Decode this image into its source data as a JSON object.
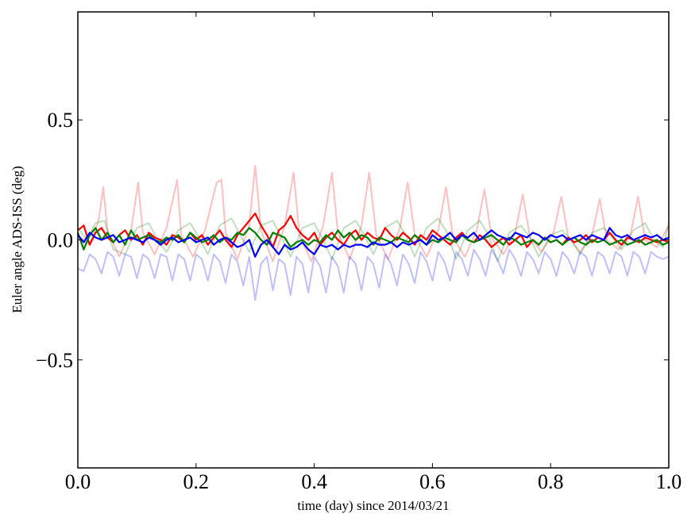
{
  "chart_data": {
    "type": "line",
    "title": "",
    "xlabel": "time (day) since 2014/03/21",
    "ylabel": "Euler angle ADS-ISS (deg)",
    "xlim": [
      0.0,
      1.0
    ],
    "ylim": [
      -0.95,
      0.95
    ],
    "x_ticks": [
      0.0,
      0.2,
      0.4,
      0.6,
      0.8,
      1.0
    ],
    "x_tick_labels": [
      "0.0",
      "0.2",
      "0.4",
      "0.6",
      "0.8",
      "1.0"
    ],
    "y_ticks": [
      -0.5,
      0.0,
      0.5
    ],
    "y_tick_labels": [
      "−0.5",
      "0.0",
      "0.5"
    ],
    "grid": false,
    "legend": "none",
    "series": [
      {
        "color": "#ff0000",
        "alpha": 0.25,
        "x": [
          0.0,
          0.02,
          0.035,
          0.043,
          0.05,
          0.07,
          0.09,
          0.102,
          0.11,
          0.13,
          0.15,
          0.168,
          0.175,
          0.195,
          0.215,
          0.235,
          0.243,
          0.25,
          0.27,
          0.29,
          0.3,
          0.31,
          0.33,
          0.35,
          0.365,
          0.375,
          0.395,
          0.415,
          0.43,
          0.44,
          0.46,
          0.48,
          0.493,
          0.505,
          0.525,
          0.545,
          0.558,
          0.57,
          0.59,
          0.61,
          0.623,
          0.635,
          0.655,
          0.675,
          0.688,
          0.7,
          0.72,
          0.74,
          0.753,
          0.765,
          0.785,
          0.805,
          0.818,
          0.83,
          0.85,
          0.87,
          0.883,
          0.895,
          0.915,
          0.935,
          0.948,
          0.96,
          0.98,
          1.0
        ],
        "y": [
          0.02,
          -0.02,
          0.08,
          0.22,
          0.04,
          -0.07,
          0.04,
          0.24,
          0.03,
          -0.06,
          0.05,
          0.25,
          0.02,
          -0.07,
          0.04,
          0.24,
          0.25,
          0.03,
          -0.08,
          0.06,
          0.31,
          0.04,
          -0.09,
          0.06,
          0.28,
          0.02,
          -0.09,
          0.06,
          0.28,
          0.03,
          -0.08,
          0.06,
          0.28,
          0.02,
          -0.08,
          0.05,
          0.24,
          0.02,
          -0.07,
          0.04,
          0.22,
          0.01,
          -0.07,
          0.04,
          0.21,
          0.01,
          -0.06,
          0.03,
          0.19,
          0.01,
          -0.05,
          0.03,
          0.18,
          0.01,
          -0.05,
          0.02,
          0.17,
          0.0,
          -0.04,
          0.02,
          0.18,
          0.0,
          -0.03,
          0.06
        ]
      },
      {
        "color": "#008000",
        "alpha": 0.25,
        "x": [
          0.0,
          0.015,
          0.03,
          0.045,
          0.06,
          0.08,
          0.1,
          0.12,
          0.135,
          0.15,
          0.17,
          0.19,
          0.205,
          0.22,
          0.24,
          0.26,
          0.275,
          0.29,
          0.31,
          0.33,
          0.345,
          0.36,
          0.38,
          0.4,
          0.415,
          0.43,
          0.45,
          0.47,
          0.485,
          0.5,
          0.52,
          0.54,
          0.555,
          0.57,
          0.59,
          0.61,
          0.625,
          0.64,
          0.66,
          0.68,
          0.695,
          0.71,
          0.73,
          0.75,
          0.765,
          0.78,
          0.8,
          0.82,
          0.835,
          0.85,
          0.87,
          0.89,
          0.905,
          0.92,
          0.94,
          0.96,
          0.975,
          0.99,
          1.0
        ],
        "y": [
          0.05,
          0.0,
          0.07,
          0.08,
          -0.04,
          -0.06,
          0.05,
          0.07,
          0.0,
          -0.05,
          0.04,
          0.07,
          0.01,
          -0.06,
          0.06,
          0.09,
          0.02,
          -0.05,
          0.06,
          0.08,
          0.01,
          -0.07,
          0.05,
          0.07,
          0.0,
          -0.08,
          0.05,
          0.08,
          0.02,
          -0.06,
          0.05,
          0.08,
          0.02,
          -0.07,
          0.05,
          0.09,
          0.03,
          -0.08,
          0.04,
          0.08,
          0.02,
          -0.09,
          0.03,
          0.06,
          0.01,
          -0.07,
          0.02,
          0.04,
          0.0,
          -0.06,
          0.03,
          0.05,
          0.01,
          -0.04,
          0.04,
          0.07,
          0.0,
          -0.03,
          0.07
        ]
      },
      {
        "color": "#0000ff",
        "alpha": 0.25,
        "x": [
          0.0,
          0.01,
          0.02,
          0.03,
          0.04,
          0.05,
          0.06,
          0.07,
          0.08,
          0.09,
          0.1,
          0.11,
          0.12,
          0.13,
          0.14,
          0.15,
          0.16,
          0.17,
          0.18,
          0.19,
          0.2,
          0.21,
          0.22,
          0.23,
          0.24,
          0.25,
          0.26,
          0.27,
          0.28,
          0.29,
          0.3,
          0.31,
          0.32,
          0.33,
          0.34,
          0.35,
          0.36,
          0.37,
          0.38,
          0.39,
          0.4,
          0.41,
          0.42,
          0.43,
          0.44,
          0.45,
          0.46,
          0.47,
          0.48,
          0.49,
          0.5,
          0.51,
          0.52,
          0.53,
          0.54,
          0.55,
          0.56,
          0.57,
          0.58,
          0.59,
          0.6,
          0.61,
          0.62,
          0.63,
          0.64,
          0.65,
          0.66,
          0.67,
          0.68,
          0.69,
          0.7,
          0.71,
          0.72,
          0.73,
          0.74,
          0.75,
          0.76,
          0.77,
          0.78,
          0.79,
          0.8,
          0.81,
          0.82,
          0.83,
          0.84,
          0.85,
          0.86,
          0.87,
          0.88,
          0.89,
          0.9,
          0.91,
          0.92,
          0.93,
          0.94,
          0.95,
          0.96,
          0.97,
          0.98,
          0.99,
          1.0
        ],
        "y": [
          -0.12,
          -0.13,
          -0.06,
          -0.08,
          -0.14,
          -0.05,
          -0.07,
          -0.15,
          -0.06,
          -0.07,
          -0.16,
          -0.06,
          -0.08,
          -0.16,
          -0.06,
          -0.07,
          -0.17,
          -0.06,
          -0.08,
          -0.17,
          -0.06,
          -0.08,
          -0.17,
          -0.06,
          -0.09,
          -0.18,
          -0.06,
          -0.09,
          -0.19,
          -0.07,
          -0.25,
          -0.1,
          -0.07,
          -0.21,
          -0.08,
          -0.1,
          -0.23,
          -0.07,
          -0.1,
          -0.22,
          -0.07,
          -0.11,
          -0.22,
          -0.07,
          -0.11,
          -0.22,
          -0.07,
          -0.1,
          -0.21,
          -0.07,
          -0.1,
          -0.2,
          -0.06,
          -0.1,
          -0.19,
          -0.06,
          -0.1,
          -0.18,
          -0.05,
          -0.09,
          -0.17,
          -0.05,
          -0.09,
          -0.17,
          -0.05,
          -0.08,
          -0.15,
          -0.04,
          -0.08,
          -0.15,
          -0.04,
          -0.08,
          -0.14,
          -0.04,
          -0.08,
          -0.15,
          -0.05,
          -0.08,
          -0.14,
          -0.05,
          -0.08,
          -0.15,
          -0.05,
          -0.08,
          -0.14,
          -0.05,
          -0.07,
          -0.15,
          -0.05,
          -0.07,
          -0.14,
          -0.05,
          -0.07,
          -0.15,
          -0.05,
          -0.07,
          -0.14,
          -0.05,
          -0.07,
          -0.08,
          -0.07
        ]
      },
      {
        "color": "#ff0000",
        "alpha": 1.0,
        "x": [
          0.0,
          0.01,
          0.02,
          0.03,
          0.04,
          0.05,
          0.06,
          0.07,
          0.08,
          0.09,
          0.1,
          0.11,
          0.12,
          0.13,
          0.14,
          0.15,
          0.16,
          0.17,
          0.18,
          0.19,
          0.2,
          0.21,
          0.22,
          0.23,
          0.24,
          0.25,
          0.26,
          0.27,
          0.28,
          0.29,
          0.3,
          0.31,
          0.32,
          0.33,
          0.34,
          0.35,
          0.36,
          0.37,
          0.38,
          0.39,
          0.4,
          0.41,
          0.42,
          0.43,
          0.44,
          0.45,
          0.46,
          0.47,
          0.48,
          0.49,
          0.5,
          0.51,
          0.52,
          0.53,
          0.54,
          0.55,
          0.56,
          0.57,
          0.58,
          0.59,
          0.6,
          0.61,
          0.62,
          0.63,
          0.64,
          0.65,
          0.66,
          0.67,
          0.68,
          0.69,
          0.7,
          0.71,
          0.72,
          0.73,
          0.74,
          0.75,
          0.76,
          0.77,
          0.78,
          0.79,
          0.8,
          0.81,
          0.82,
          0.83,
          0.84,
          0.85,
          0.86,
          0.87,
          0.88,
          0.89,
          0.9,
          0.91,
          0.92,
          0.93,
          0.94,
          0.95,
          0.96,
          0.97,
          0.98,
          0.99,
          1.0
        ],
        "y": [
          0.04,
          0.06,
          -0.02,
          0.03,
          0.05,
          0.01,
          -0.01,
          0.02,
          0.04,
          0.0,
          0.02,
          -0.02,
          0.03,
          0.01,
          0.0,
          -0.02,
          0.02,
          0.01,
          -0.01,
          0.03,
          0.0,
          0.02,
          -0.02,
          0.01,
          0.04,
          0.0,
          -0.03,
          0.02,
          0.05,
          0.08,
          0.11,
          0.06,
          0.02,
          -0.03,
          0.04,
          0.06,
          0.1,
          0.05,
          0.02,
          0.0,
          0.03,
          -0.02,
          0.01,
          0.03,
          0.0,
          -0.02,
          0.02,
          0.04,
          0.0,
          0.03,
          0.01,
          0.0,
          0.05,
          0.02,
          0.0,
          0.03,
          0.01,
          -0.02,
          0.02,
          0.0,
          0.04,
          0.02,
          0.0,
          -0.02,
          0.01,
          0.03,
          0.0,
          -0.01,
          0.02,
          0.0,
          -0.03,
          -0.01,
          0.01,
          -0.02,
          0.0,
          0.02,
          -0.03,
          0.0,
          -0.02,
          0.01,
          -0.01,
          0.0,
          -0.02,
          0.01,
          -0.01,
          0.0,
          0.02,
          -0.01,
          0.01,
          0.0,
          0.03,
          0.0,
          -0.02,
          0.01,
          0.0,
          -0.01,
          0.01,
          0.0,
          -0.01,
          0.0,
          -0.01
        ]
      },
      {
        "color": "#008000",
        "alpha": 1.0,
        "x": [
          0.0,
          0.01,
          0.02,
          0.03,
          0.04,
          0.05,
          0.06,
          0.07,
          0.08,
          0.09,
          0.1,
          0.11,
          0.12,
          0.13,
          0.14,
          0.15,
          0.16,
          0.17,
          0.18,
          0.19,
          0.2,
          0.21,
          0.22,
          0.23,
          0.24,
          0.25,
          0.26,
          0.27,
          0.28,
          0.29,
          0.3,
          0.31,
          0.32,
          0.33,
          0.34,
          0.35,
          0.36,
          0.37,
          0.38,
          0.39,
          0.4,
          0.41,
          0.42,
          0.43,
          0.44,
          0.45,
          0.46,
          0.47,
          0.48,
          0.49,
          0.5,
          0.51,
          0.52,
          0.53,
          0.54,
          0.55,
          0.56,
          0.57,
          0.58,
          0.59,
          0.6,
          0.61,
          0.62,
          0.63,
          0.64,
          0.65,
          0.66,
          0.67,
          0.68,
          0.69,
          0.7,
          0.71,
          0.72,
          0.73,
          0.74,
          0.75,
          0.76,
          0.77,
          0.78,
          0.79,
          0.8,
          0.81,
          0.82,
          0.83,
          0.84,
          0.85,
          0.86,
          0.87,
          0.88,
          0.89,
          0.9,
          0.91,
          0.92,
          0.93,
          0.94,
          0.95,
          0.96,
          0.97,
          0.98,
          0.99,
          1.0
        ],
        "y": [
          0.03,
          -0.04,
          0.02,
          0.05,
          0.0,
          0.03,
          -0.01,
          0.02,
          -0.02,
          0.04,
          0.0,
          0.01,
          0.02,
          0.0,
          -0.01,
          0.01,
          0.0,
          0.02,
          -0.01,
          0.03,
          0.01,
          -0.01,
          0.0,
          0.02,
          -0.01,
          0.01,
          0.0,
          0.03,
          0.02,
          0.05,
          0.03,
          0.0,
          -0.02,
          0.03,
          0.02,
          0.01,
          -0.03,
          -0.01,
          0.0,
          -0.02,
          0.0,
          -0.01,
          0.02,
          0.0,
          0.04,
          0.01,
          0.03,
          0.0,
          0.02,
          0.01,
          -0.02,
          0.01,
          0.0,
          -0.01,
          0.01,
          0.0,
          -0.01,
          0.02,
          0.0,
          -0.02,
          0.0,
          -0.01,
          0.01,
          0.0,
          -0.01,
          0.02,
          0.0,
          -0.01,
          0.0,
          0.01,
          0.02,
          0.0,
          -0.02,
          0.01,
          0.0,
          -0.02,
          -0.01,
          0.0,
          -0.02,
          0.01,
          -0.01,
          0.0,
          -0.02,
          0.0,
          0.01,
          -0.01,
          -0.02,
          0.0,
          -0.01,
          0.0,
          -0.02,
          -0.01,
          0.0,
          -0.02,
          -0.01,
          0.0,
          -0.02,
          -0.01,
          0.0,
          -0.02,
          -0.01
        ]
      },
      {
        "color": "#0000ff",
        "alpha": 1.0,
        "x": [
          0.0,
          0.01,
          0.02,
          0.03,
          0.04,
          0.05,
          0.06,
          0.07,
          0.08,
          0.09,
          0.1,
          0.11,
          0.12,
          0.13,
          0.14,
          0.15,
          0.16,
          0.17,
          0.18,
          0.19,
          0.2,
          0.21,
          0.22,
          0.23,
          0.24,
          0.25,
          0.26,
          0.27,
          0.28,
          0.29,
          0.3,
          0.31,
          0.32,
          0.33,
          0.34,
          0.35,
          0.36,
          0.37,
          0.38,
          0.39,
          0.4,
          0.41,
          0.42,
          0.43,
          0.44,
          0.45,
          0.46,
          0.47,
          0.48,
          0.49,
          0.5,
          0.51,
          0.52,
          0.53,
          0.54,
          0.55,
          0.56,
          0.57,
          0.58,
          0.59,
          0.6,
          0.61,
          0.62,
          0.63,
          0.64,
          0.65,
          0.66,
          0.67,
          0.68,
          0.69,
          0.7,
          0.71,
          0.72,
          0.73,
          0.74,
          0.75,
          0.76,
          0.77,
          0.78,
          0.79,
          0.8,
          0.81,
          0.82,
          0.83,
          0.84,
          0.85,
          0.86,
          0.87,
          0.88,
          0.89,
          0.9,
          0.91,
          0.92,
          0.93,
          0.94,
          0.95,
          0.96,
          0.97,
          0.98,
          0.99,
          1.0
        ],
        "y": [
          0.02,
          -0.01,
          0.03,
          0.01,
          0.0,
          0.01,
          0.02,
          -0.01,
          0.0,
          0.01,
          0.0,
          -0.01,
          0.01,
          0.0,
          -0.02,
          0.0,
          0.01,
          -0.01,
          0.0,
          0.01,
          -0.01,
          0.0,
          0.01,
          -0.02,
          0.0,
          0.01,
          -0.01,
          -0.03,
          -0.02,
          0.0,
          -0.07,
          -0.02,
          0.0,
          -0.03,
          -0.06,
          -0.02,
          -0.04,
          -0.03,
          -0.01,
          -0.04,
          -0.06,
          -0.02,
          -0.03,
          -0.02,
          -0.04,
          -0.02,
          -0.03,
          -0.02,
          -0.02,
          -0.03,
          -0.01,
          -0.02,
          -0.02,
          -0.01,
          -0.03,
          -0.01,
          -0.02,
          -0.01,
          0.0,
          -0.02,
          0.02,
          0.0,
          0.01,
          0.03,
          0.0,
          0.02,
          0.01,
          0.03,
          0.0,
          0.02,
          0.04,
          0.02,
          0.01,
          0.0,
          0.03,
          0.02,
          0.01,
          0.03,
          0.02,
          0.0,
          0.02,
          0.01,
          0.02,
          0.0,
          0.01,
          0.02,
          0.0,
          0.02,
          0.01,
          0.0,
          0.05,
          0.02,
          0.01,
          0.02,
          0.0,
          0.01,
          0.02,
          0.01,
          0.02,
          0.0,
          0.01
        ]
      }
    ]
  }
}
